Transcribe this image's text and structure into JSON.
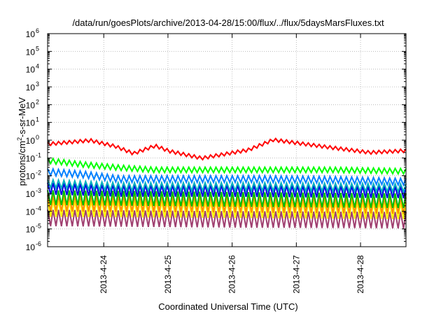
{
  "chart_data": {
    "type": "line",
    "title": "/data/run/goesPlots/archive/2013-04-28/15:00/flux/../flux/5daysMarsFluxes.txt",
    "xlabel": "Coordinated Universal Time (UTC)",
    "ylabel": {
      "prefix": "protons/cm",
      "sup": "2",
      "suffix": "-s-sr-MeV"
    },
    "yscale": "log",
    "ylim": [
      1e-06,
      1000000.0
    ],
    "yticks": [
      {
        "base": "10",
        "exp": "-6",
        "value": -6
      },
      {
        "base": "10",
        "exp": "-5",
        "value": -5
      },
      {
        "base": "10",
        "exp": "-4",
        "value": -4
      },
      {
        "base": "10",
        "exp": "-3",
        "value": -3
      },
      {
        "base": "10",
        "exp": "-2",
        "value": -2
      },
      {
        "base": "10",
        "exp": "-1",
        "value": -1
      },
      {
        "base": "10",
        "exp": "0",
        "value": 0
      },
      {
        "base": "10",
        "exp": "1",
        "value": 1
      },
      {
        "base": "10",
        "exp": "2",
        "value": 2
      },
      {
        "base": "10",
        "exp": "3",
        "value": 3
      },
      {
        "base": "10",
        "exp": "4",
        "value": 4
      },
      {
        "base": "10",
        "exp": "5",
        "value": 5
      },
      {
        "base": "10",
        "exp": "6",
        "value": 6
      }
    ],
    "xlim": [
      "2013-04-23 03:00",
      "2013-04-28 17:00"
    ],
    "xticks": [
      {
        "label": "2013-4-24",
        "value": "2013-04-24 00:00"
      },
      {
        "label": "2013-4-25",
        "value": "2013-04-25 00:00"
      },
      {
        "label": "2013-4-26",
        "value": "2013-04-26 00:00"
      },
      {
        "label": "2013-4-27",
        "value": "2013-04-27 00:00"
      },
      {
        "label": "2013-4-28",
        "value": "2013-04-28 00:00"
      }
    ],
    "grid": true,
    "sawtooth_cycles": 66,
    "series": [
      {
        "color": "#ff0000",
        "peak_anchors": [
          [
            0,
            0.75
          ],
          [
            0.12,
            1.2
          ],
          [
            0.19,
            0.55
          ],
          [
            0.24,
            0.22
          ],
          [
            0.3,
            0.6
          ],
          [
            0.34,
            0.3
          ],
          [
            0.43,
            0.12
          ],
          [
            0.56,
            0.35
          ],
          [
            0.63,
            1.3
          ],
          [
            0.8,
            0.45
          ],
          [
            0.9,
            0.25
          ],
          [
            1.0,
            0.32
          ]
        ],
        "dip_ratio": 0.65
      },
      {
        "color": "#00ff00",
        "peak_anchors": [
          [
            0,
            0.1
          ],
          [
            0.1,
            0.06
          ],
          [
            0.2,
            0.04
          ],
          [
            0.3,
            0.03
          ],
          [
            0.4,
            0.03
          ],
          [
            0.5,
            0.03
          ],
          [
            0.6,
            0.03
          ],
          [
            0.8,
            0.03
          ],
          [
            1.0,
            0.025
          ]
        ],
        "dip_ratio": 0.5
      },
      {
        "color": "#0080ff",
        "peak_anchors": [
          [
            0,
            0.025
          ],
          [
            0.1,
            0.018
          ],
          [
            0.2,
            0.01
          ],
          [
            0.4,
            0.01
          ],
          [
            0.6,
            0.01
          ],
          [
            0.8,
            0.009
          ],
          [
            1.0,
            0.007
          ]
        ],
        "dip_ratio": 0.42
      },
      {
        "color": "#00b0c0",
        "peak_anchors": [
          [
            0,
            0.006
          ],
          [
            0.2,
            0.004
          ],
          [
            0.4,
            0.004
          ],
          [
            0.6,
            0.004
          ],
          [
            1.0,
            0.0035
          ]
        ],
        "dip_ratio": 0.35
      },
      {
        "color": "#0000e0",
        "peak_anchors": [
          [
            0,
            0.004
          ],
          [
            0.2,
            0.003
          ],
          [
            0.5,
            0.003
          ],
          [
            1.0,
            0.0025
          ]
        ],
        "dip_ratio": 0.22
      },
      {
        "color": "#00c000",
        "peak_anchors": [
          [
            0,
            0.0015
          ],
          [
            0.5,
            0.0012
          ],
          [
            1.0,
            0.001
          ]
        ],
        "dip_ratio": 0.15
      },
      {
        "color": "#ff8c00",
        "peak_anchors": [
          [
            0,
            0.0008
          ],
          [
            0.5,
            0.0007
          ],
          [
            1.0,
            0.0006
          ]
        ],
        "dip_ratio": 0.12
      },
      {
        "color": "#ffff00",
        "peak_anchors": [
          [
            0,
            0.0004
          ],
          [
            0.5,
            0.00035
          ],
          [
            1.0,
            0.0003
          ]
        ],
        "dip_ratio": 0.12
      },
      {
        "color": "#a04070",
        "peak_anchors": [
          [
            0,
            0.00012
          ],
          [
            0.5,
            0.0001
          ],
          [
            1.0,
            9e-05
          ]
        ],
        "dip_ratio": 0.12
      }
    ]
  }
}
